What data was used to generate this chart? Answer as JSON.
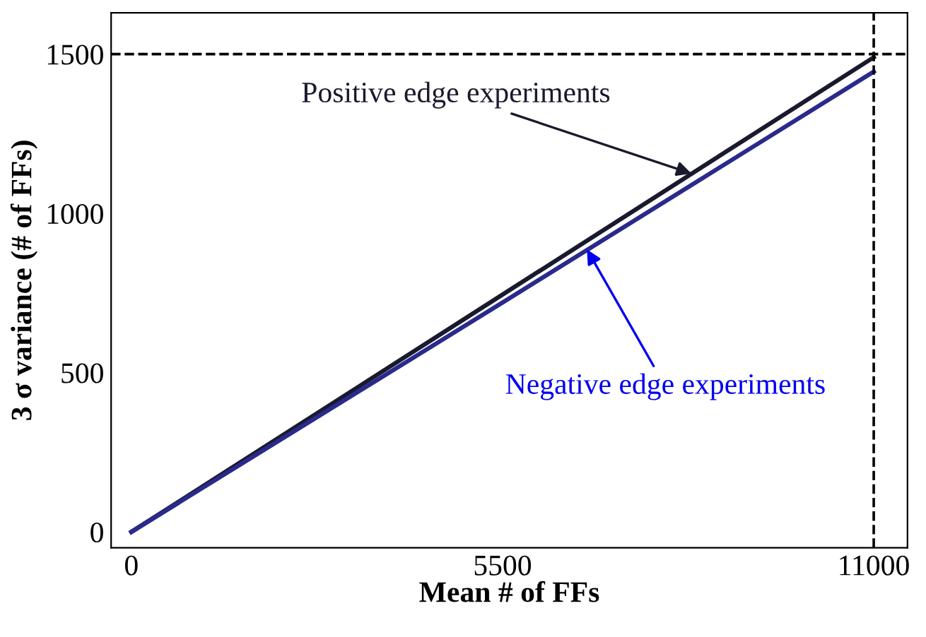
{
  "chart_data": {
    "type": "line",
    "xlabel": "Mean # of FFs",
    "ylabel": "3 σ variance (# of FFs)",
    "xlim": [
      -300,
      11500
    ],
    "ylim": [
      -50,
      1630
    ],
    "xticks": [
      0,
      5500,
      11000
    ],
    "yticks": [
      0,
      500,
      1000,
      1500
    ],
    "grid": false,
    "marker": "none",
    "line_style": "solid",
    "series": [
      {
        "color": "#1a1a2e",
        "x": [
          0,
          5500,
          11000
        ],
        "values": [
          0,
          745,
          1490
        ]
      },
      {
        "color": "#2a2a8c",
        "x": [
          0,
          5500,
          11000
        ],
        "values": [
          0,
          720,
          1445
        ]
      }
    ],
    "ref_lines": [
      {
        "axis": "y",
        "value": 1500,
        "color": "#000000",
        "line_style": "dashed"
      },
      {
        "axis": "x",
        "value": 11000,
        "color": "#000000",
        "line_style": "dashed"
      }
    ],
    "annotations": [
      {
        "text": "Positive edge experiments",
        "x": 8300,
        "y": 1125
      },
      {
        "text": "Negative edge experiments",
        "x": 6750,
        "y": 887
      }
    ]
  }
}
